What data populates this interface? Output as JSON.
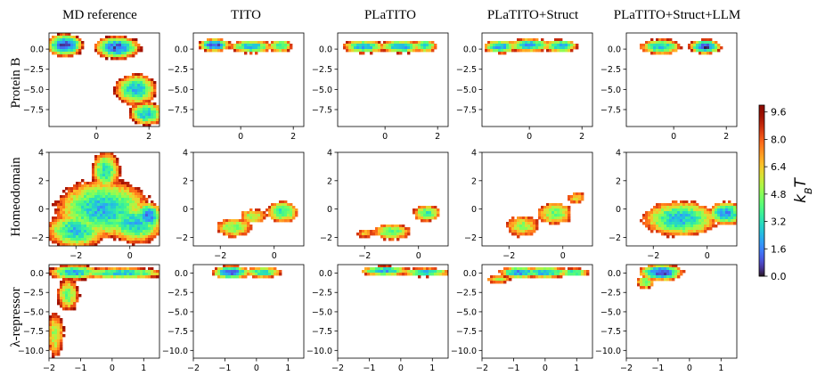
{
  "chart_data": {
    "type": "heatmap",
    "title": "",
    "columns": [
      "MD reference",
      "TITO",
      "PLaTITO",
      "PLaTITO+Struct",
      "PLaTITO+Struct+LLM"
    ],
    "rows": [
      {
        "name": "Protein B",
        "xlim": [
          -1.8,
          2.4
        ],
        "ylim": [
          -9.6,
          2.0
        ],
        "xticks": [
          0,
          2
        ],
        "yticks": [
          0.0,
          -2.5,
          -5.0,
          -7.5
        ],
        "xtick_labels": [
          "0",
          "2"
        ],
        "ytick_labels": [
          "0.0",
          "−2.5",
          "−5.0",
          "−7.5"
        ],
        "panels": [
          {
            "wells": [
              [
                -1.2,
                0.5,
                0.4,
                0.8,
                0.8
              ],
              [
                0.8,
                0.2,
                0.5,
                0.8,
                1.0
              ],
              [
                1.5,
                -5.0,
                0.5,
                1.2,
                2.4
              ],
              [
                1.9,
                -8.0,
                0.4,
                0.9,
                2.4
              ]
            ],
            "cutoff": 9.6
          },
          {
            "wells": [
              [
                -1.0,
                0.5,
                0.35,
                0.45,
                0.8
              ],
              [
                0.4,
                0.3,
                0.5,
                0.5,
                2.2
              ],
              [
                1.5,
                0.4,
                0.3,
                0.5,
                3.0
              ]
            ],
            "cutoff": 9.0
          },
          {
            "wells": [
              [
                -0.8,
                0.3,
                0.5,
                0.5,
                2.2
              ],
              [
                0.6,
                0.3,
                0.5,
                0.5,
                2.0
              ],
              [
                1.5,
                0.4,
                0.3,
                0.5,
                2.8
              ]
            ],
            "cutoff": 9.0
          },
          {
            "wells": [
              [
                -1.1,
                0.3,
                0.4,
                0.5,
                2.0
              ],
              [
                0.0,
                0.5,
                0.5,
                0.5,
                2.0
              ],
              [
                1.2,
                0.4,
                0.4,
                0.5,
                2.2
              ]
            ],
            "cutoff": 9.0
          },
          {
            "wells": [
              [
                -0.5,
                0.3,
                0.5,
                0.6,
                2.5
              ],
              [
                1.2,
                0.3,
                0.35,
                0.5,
                0.6
              ]
            ],
            "cutoff": 9.0
          }
        ]
      },
      {
        "name": "Homeodomain",
        "xlim": [
          -3.0,
          1.1
        ],
        "ylim": [
          -2.6,
          4.0
        ],
        "xticks": [
          -2,
          0
        ],
        "yticks": [
          4,
          2,
          0,
          -2
        ],
        "xtick_labels": [
          "−2",
          "0"
        ],
        "ytick_labels": [
          "4",
          "2",
          "0",
          "−2"
        ],
        "panels": [
          {
            "wells": [
              [
                -1.0,
                0.0,
                1.1,
                1.3,
                2.4
              ],
              [
                -2.0,
                -1.5,
                0.7,
                0.8,
                2.6
              ],
              [
                0.2,
                -1.0,
                0.7,
                0.9,
                2.6
              ],
              [
                -0.9,
                2.7,
                0.35,
                0.9,
                3.2
              ],
              [
                0.7,
                -0.5,
                0.3,
                0.6,
                1.5
              ]
            ],
            "cutoff": 9.4
          },
          {
            "wells": [
              [
                -1.5,
                -1.3,
                0.5,
                0.5,
                4.5
              ],
              [
                0.3,
                -0.2,
                0.4,
                0.5,
                3.2
              ],
              [
                -0.8,
                -0.5,
                0.4,
                0.4,
                5.0
              ]
            ],
            "cutoff": 8.8
          },
          {
            "wells": [
              [
                -1.0,
                -1.6,
                0.5,
                0.4,
                4.0
              ],
              [
                0.3,
                -0.3,
                0.35,
                0.4,
                3.6
              ],
              [
                -2.0,
                -1.7,
                0.3,
                0.3,
                6.5
              ]
            ],
            "cutoff": 8.8
          },
          {
            "wells": [
              [
                -1.5,
                -1.2,
                0.5,
                0.6,
                5.0
              ],
              [
                -0.3,
                -0.3,
                0.5,
                0.6,
                4.5
              ],
              [
                0.5,
                0.8,
                0.3,
                0.4,
                6.0
              ]
            ],
            "cutoff": 8.8
          },
          {
            "wells": [
              [
                -1.0,
                -0.7,
                0.9,
                0.8,
                2.5
              ],
              [
                0.7,
                -0.3,
                0.4,
                0.5,
                1.8
              ]
            ],
            "cutoff": 8.8
          }
        ]
      },
      {
        "name": "λ-repressor",
        "xlim": [
          -2.0,
          1.5
        ],
        "ylim": [
          -11.0,
          1.1
        ],
        "xticks": [
          -2,
          -1,
          0,
          1
        ],
        "yticks": [
          0.0,
          -2.5,
          -5.0,
          -7.5,
          -10.0
        ],
        "xtick_labels": [
          "−2",
          "−1",
          "0",
          "1"
        ],
        "ytick_labels": [
          "0.0",
          "−2.5",
          "−5.0",
          "−7.5",
          "−10.0"
        ],
        "panels": [
          {
            "wells": [
              [
                -1.2,
                0.1,
                0.5,
                0.6,
                2.2
              ],
              [
                0.3,
                0.0,
                0.9,
                0.45,
                2.6
              ],
              [
                -1.4,
                -2.8,
                0.25,
                1.5,
                4.4
              ],
              [
                -1.8,
                -8.0,
                0.2,
                2.2,
                5.0
              ]
            ],
            "cutoff": 9.6
          },
          {
            "wells": [
              [
                -0.8,
                0.1,
                0.35,
                0.5,
                0.8
              ],
              [
                0.2,
                0.1,
                0.4,
                0.45,
                3.0
              ]
            ],
            "cutoff": 9.0
          },
          {
            "wells": [
              [
                -0.5,
                0.3,
                0.5,
                0.4,
                2.2
              ],
              [
                0.8,
                0.1,
                0.5,
                0.35,
                2.6
              ]
            ],
            "cutoff": 9.0
          },
          {
            "wells": [
              [
                -0.8,
                0.1,
                0.4,
                0.45,
                1.6
              ],
              [
                0.0,
                0.1,
                0.5,
                0.45,
                2.2
              ],
              [
                0.9,
                0.1,
                0.35,
                0.35,
                3.2
              ],
              [
                -1.5,
                -0.8,
                0.3,
                0.4,
                5.2
              ]
            ],
            "cutoff": 9.0
          },
          {
            "wells": [
              [
                -0.9,
                0.1,
                0.4,
                0.6,
                0.6
              ],
              [
                -1.4,
                -1.2,
                0.2,
                0.6,
                4.2
              ]
            ],
            "cutoff": 9.0
          }
        ]
      }
    ],
    "colorbar": {
      "label": "k_B T",
      "min": 0.0,
      "max": 10.0,
      "ticks": [
        0.0,
        1.6,
        3.2,
        4.8,
        6.4,
        8.0,
        9.6
      ],
      "tick_labels": [
        "0.0",
        "1.6",
        "3.2",
        "4.8",
        "6.4",
        "8.0",
        "9.6"
      ],
      "colormap": "turbo"
    }
  },
  "colors": {
    "axis": "#000000",
    "background": "#ffffff"
  }
}
